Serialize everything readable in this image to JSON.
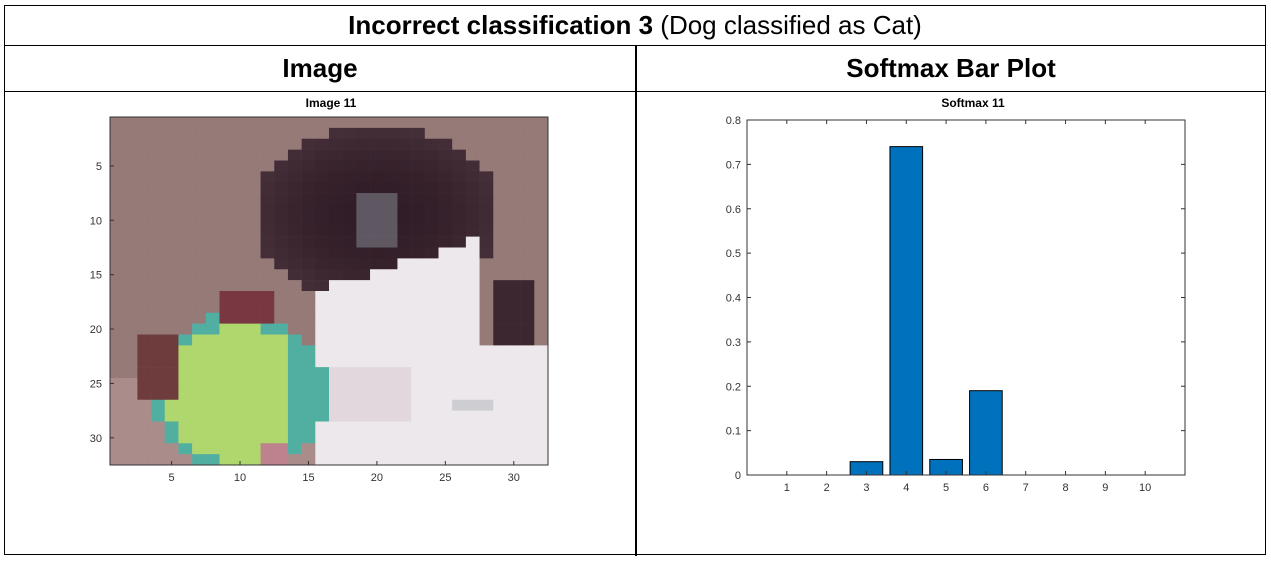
{
  "table": {
    "title_bold": "Incorrect classification 3",
    "title_rest": " (Dog classified as Cat)",
    "col_image": "Image",
    "col_softmax": "Softmax Bar Plot"
  },
  "image_panel": {
    "title": "Image 11",
    "x_ticks": [
      "5",
      "10",
      "15",
      "20",
      "25",
      "30"
    ],
    "y_ticks": [
      "5",
      "10",
      "15",
      "20",
      "25",
      "30"
    ]
  },
  "colors": {
    "bar": "#0072bd",
    "border": "#000000"
  },
  "chart_data": {
    "type": "bar",
    "title": "Softmax 11",
    "xlabel": "",
    "ylabel": "",
    "categories": [
      "1",
      "2",
      "3",
      "4",
      "5",
      "6",
      "7",
      "8",
      "9",
      "10"
    ],
    "values": [
      0,
      0,
      0.03,
      0.74,
      0.035,
      0.19,
      0,
      0,
      0,
      0
    ],
    "ylim": [
      0,
      0.8
    ],
    "y_ticks": [
      "0",
      "0.1",
      "0.2",
      "0.3",
      "0.4",
      "0.5",
      "0.6",
      "0.7",
      "0.8"
    ],
    "grid": false
  }
}
